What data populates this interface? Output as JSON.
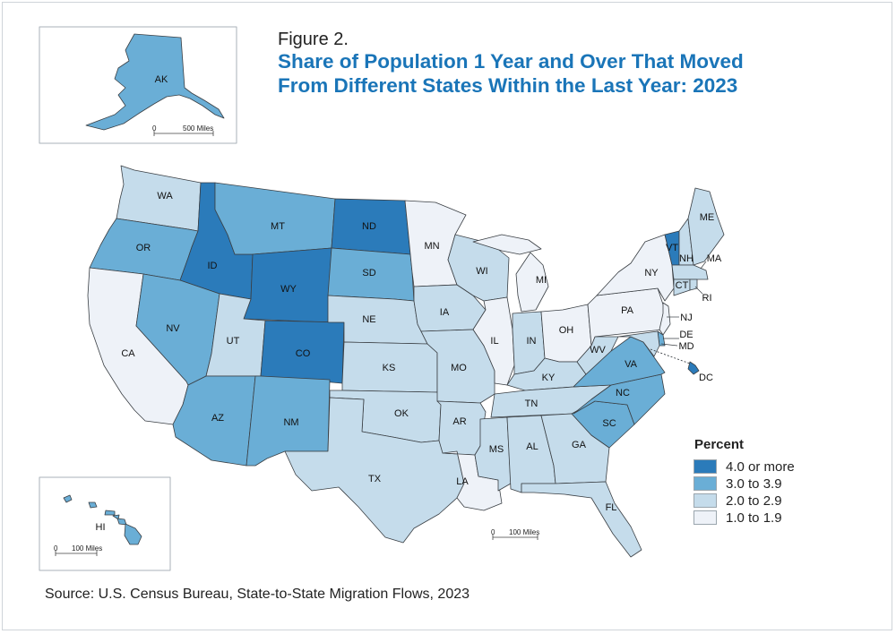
{
  "figure_label": "Figure 2.",
  "title_line1": "Share of Population 1 Year and Over That Moved",
  "title_line2": "From Different States Within the Last Year: 2023",
  "source": "Source: U.S. Census Bureau, State-to-State Migration Flows, 2023",
  "colors": {
    "class4": "#2b7bba",
    "class3": "#6aaed6",
    "class2": "#c5dceb",
    "class1": "#eef2f8",
    "title": "#1a75b8",
    "border": "#3a3f44"
  },
  "legend": {
    "title": "Percent",
    "items": [
      {
        "label": "4.0 or more",
        "class": "class4"
      },
      {
        "label": "3.0 to 3.9",
        "class": "class3"
      },
      {
        "label": "2.0 to 2.9",
        "class": "class2"
      },
      {
        "label": "1.0 to 1.9",
        "class": "class1"
      }
    ]
  },
  "scales": {
    "alaska": {
      "zero": "0",
      "label": "500 Miles"
    },
    "hawaii": {
      "zero": "0",
      "label": "100 Miles"
    },
    "main": {
      "zero": "0",
      "label": "100 Miles"
    }
  },
  "states": {
    "WA": "class2",
    "OR": "class3",
    "CA": "class1",
    "ID": "class4",
    "NV": "class3",
    "MT": "class3",
    "WY": "class4",
    "UT": "class2",
    "AZ": "class3",
    "CO": "class4",
    "NM": "class3",
    "ND": "class4",
    "SD": "class3",
    "NE": "class2",
    "KS": "class2",
    "OK": "class2",
    "TX": "class2",
    "MN": "class1",
    "IA": "class2",
    "MO": "class2",
    "AR": "class2",
    "LA": "class1",
    "WI": "class2",
    "IL": "class1",
    "MI": "class1",
    "IN": "class2",
    "OH": "class1",
    "KY": "class2",
    "TN": "class2",
    "MS": "class2",
    "AL": "class2",
    "GA": "class2",
    "FL": "class2",
    "SC": "class3",
    "NC": "class3",
    "VA": "class3",
    "WV": "class2",
    "PA": "class1",
    "NY": "class1",
    "VT": "class4",
    "NH": "class2",
    "ME": "class2",
    "MA": "class2",
    "CT": "class2",
    "RI": "class2",
    "NJ": "class1",
    "DE": "class3",
    "MD": "class2",
    "DC": "class4",
    "AK": "class3",
    "HI": "class3"
  },
  "labels": {
    "WA": "WA",
    "OR": "OR",
    "CA": "CA",
    "ID": "ID",
    "NV": "NV",
    "MT": "MT",
    "WY": "WY",
    "UT": "UT",
    "AZ": "AZ",
    "CO": "CO",
    "NM": "NM",
    "ND": "ND",
    "SD": "SD",
    "NE": "NE",
    "KS": "KS",
    "OK": "OK",
    "TX": "TX",
    "MN": "MN",
    "IA": "IA",
    "MO": "MO",
    "AR": "AR",
    "LA": "LA",
    "WI": "WI",
    "IL": "IL",
    "MI": "MI",
    "IN": "IN",
    "OH": "OH",
    "KY": "KY",
    "TN": "TN",
    "MS": "MS",
    "AL": "AL",
    "GA": "GA",
    "FL": "FL",
    "SC": "SC",
    "NC": "NC",
    "VA": "VA",
    "WV": "WV",
    "PA": "PA",
    "NY": "NY",
    "VT": "VT",
    "NH": "NH",
    "ME": "ME",
    "MA": "MA",
    "CT": "CT",
    "RI": "RI",
    "NJ": "NJ",
    "DE": "DE",
    "MD": "MD",
    "DC": "DC",
    "AK": "AK",
    "HI": "HI"
  }
}
